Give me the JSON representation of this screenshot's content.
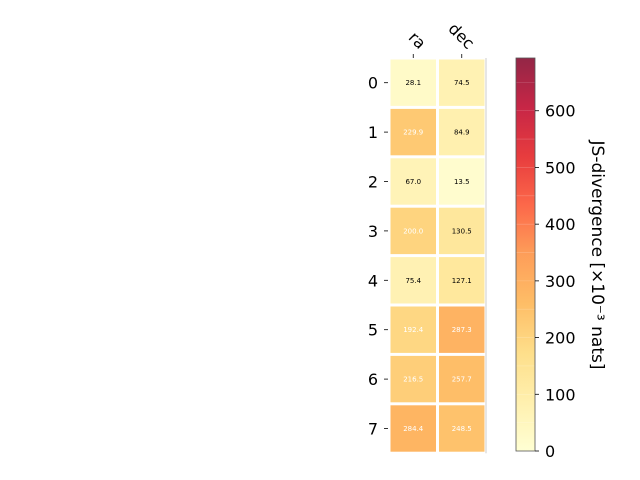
{
  "chart_data": {
    "type": "heatmap",
    "columns": [
      "ra",
      "dec"
    ],
    "rows": [
      "0",
      "1",
      "2",
      "3",
      "4",
      "5",
      "6",
      "7"
    ],
    "values": [
      [
        28.1,
        74.5
      ],
      [
        229.9,
        84.9
      ],
      [
        67.0,
        13.5
      ],
      [
        200.0,
        130.5
      ],
      [
        75.4,
        127.1
      ],
      [
        192.4,
        287.3
      ],
      [
        216.5,
        257.7
      ],
      [
        284.4,
        248.5
      ]
    ],
    "cell_labels": [
      [
        "28.1",
        "74.5"
      ],
      [
        "229.9",
        "84.9"
      ],
      [
        "67.0",
        "13.5"
      ],
      [
        "200.0",
        "130.5"
      ],
      [
        "75.4",
        "127.1"
      ],
      [
        "192.4",
        "287.3"
      ],
      [
        "216.5",
        "257.7"
      ],
      [
        "284.4",
        "248.5"
      ]
    ],
    "colorbar": {
      "label": "JS-divergence [×10⁻³ nats]",
      "min": 0,
      "max": 693,
      "ticks": [
        0,
        100,
        200,
        300,
        400,
        500,
        600
      ],
      "tick_labels": [
        "0",
        "100",
        "200",
        "300",
        "400",
        "500",
        "600"
      ],
      "colormap": "YlOrRd"
    }
  }
}
